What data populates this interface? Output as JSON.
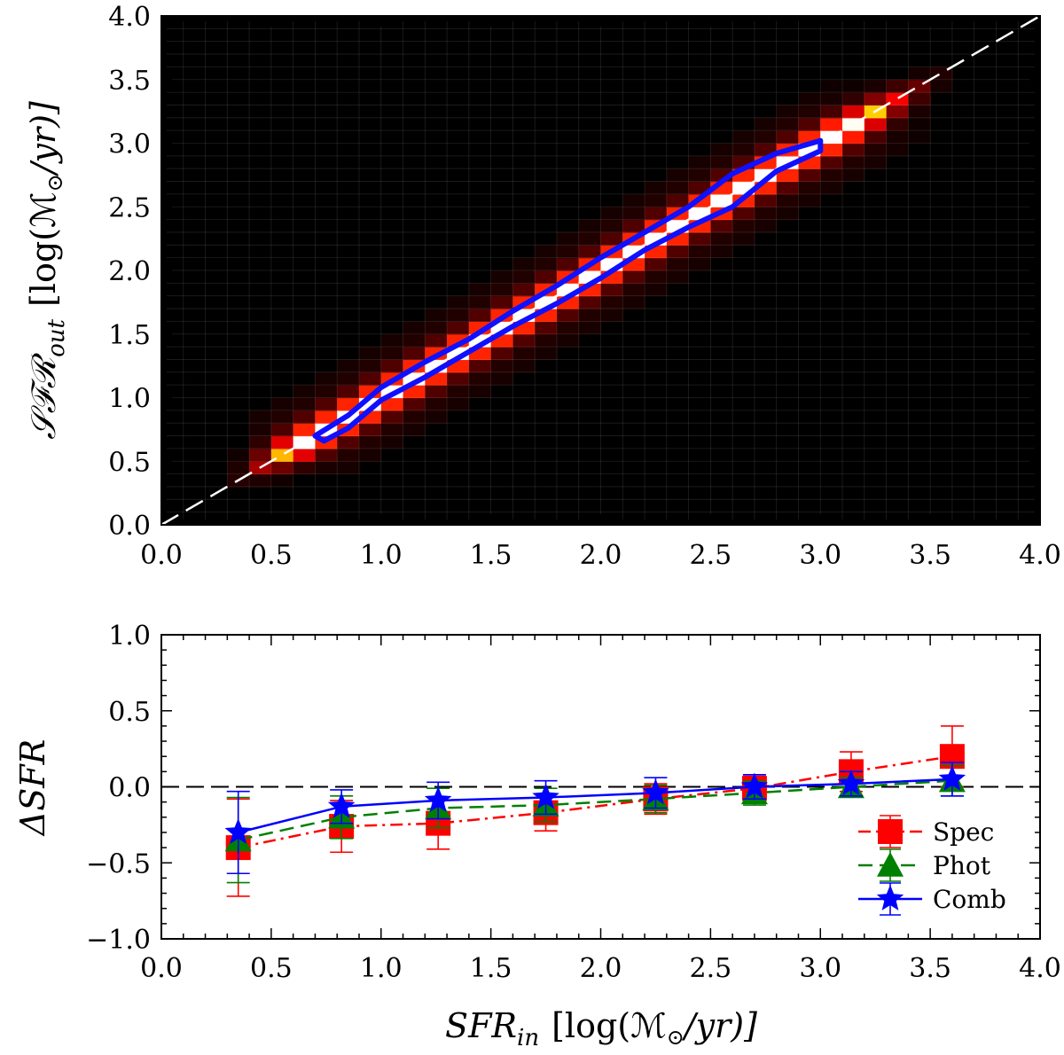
{
  "chart_data": [
    {
      "type": "heatmap",
      "title": "",
      "xlabel": "",
      "ylabel": "SFR_out [log(M_⊙/yr)]",
      "ylabel_parts": {
        "main": "𝒮ℱℛ",
        "sub": "out",
        "unit": "[log(ℳ",
        "sun": "⊙",
        "unit_end": "/yr)]"
      },
      "xlim": [
        0.0,
        4.0
      ],
      "ylim": [
        0.0,
        4.0
      ],
      "xticks": [
        "0.0",
        "0.5",
        "1.0",
        "1.5",
        "2.0",
        "2.5",
        "3.0",
        "3.5",
        "4.0"
      ],
      "yticks": [
        "0.0",
        "0.5",
        "1.0",
        "1.5",
        "2.0",
        "2.5",
        "3.0",
        "3.5",
        "4.0"
      ],
      "colormap": "hot",
      "bins": 40,
      "density_along_identity": {
        "x_start": 0.7,
        "x_end": 3.05,
        "core_peak": 1.0,
        "halo_extent": [
          0.3,
          3.6
        ]
      },
      "reference_line": {
        "style": "dashed",
        "color": "#ffffff",
        "from": [
          0.0,
          0.0
        ],
        "to": [
          4.0,
          4.0
        ]
      },
      "contour": {
        "color": "#1010ff",
        "upper_edge": [
          [
            0.7,
            0.7
          ],
          [
            0.85,
            0.86
          ],
          [
            1.0,
            1.08
          ],
          [
            1.2,
            1.28
          ],
          [
            1.4,
            1.46
          ],
          [
            1.6,
            1.68
          ],
          [
            1.8,
            1.88
          ],
          [
            2.0,
            2.1
          ],
          [
            2.2,
            2.3
          ],
          [
            2.4,
            2.5
          ],
          [
            2.6,
            2.76
          ],
          [
            2.8,
            2.92
          ],
          [
            3.0,
            3.02
          ]
        ],
        "lower_edge": [
          [
            3.0,
            2.94
          ],
          [
            2.8,
            2.78
          ],
          [
            2.6,
            2.5
          ],
          [
            2.4,
            2.34
          ],
          [
            2.2,
            2.16
          ],
          [
            2.0,
            1.94
          ],
          [
            1.8,
            1.74
          ],
          [
            1.6,
            1.56
          ],
          [
            1.4,
            1.36
          ],
          [
            1.2,
            1.16
          ],
          [
            1.0,
            0.98
          ],
          [
            0.85,
            0.76
          ],
          [
            0.74,
            0.66
          ]
        ]
      }
    },
    {
      "type": "line",
      "title": "",
      "xlabel": "SFR_in [log(M_⊙/yr)]",
      "xlabel_parts": {
        "main": "SFR",
        "sub": "in",
        "unit": "[log(ℳ",
        "sun": "⊙",
        "unit_end": "/yr)]"
      },
      "ylabel": "ΔSFR",
      "xlim": [
        0.0,
        4.0
      ],
      "ylim": [
        -1.0,
        1.0
      ],
      "xticks": [
        "0.0",
        "0.5",
        "1.0",
        "1.5",
        "2.0",
        "2.5",
        "3.0",
        "3.5",
        "4.0"
      ],
      "yticks": [
        "1.0",
        "0.5",
        "0.0",
        "−0.5",
        "−1.0"
      ],
      "reference_line": {
        "y": 0.0,
        "style": "dashed",
        "color": "#000000"
      },
      "legend": "lower-right",
      "series": [
        {
          "name": "Spec",
          "color": "#ff0000",
          "linestyle": "dashdot",
          "marker": "square",
          "x": [
            0.35,
            0.82,
            1.26,
            1.75,
            2.25,
            2.7,
            3.14,
            3.6
          ],
          "y": [
            -0.4,
            -0.26,
            -0.24,
            -0.17,
            -0.08,
            -0.01,
            0.1,
            0.2
          ],
          "err": [
            0.32,
            0.17,
            0.17,
            0.12,
            0.1,
            0.08,
            0.13,
            0.2
          ]
        },
        {
          "name": "Phot",
          "color": "#008000",
          "linestyle": "dashed",
          "marker": "triangle",
          "x": [
            0.35,
            0.82,
            1.26,
            1.75,
            2.25,
            2.7,
            3.14,
            3.6
          ],
          "y": [
            -0.35,
            -0.2,
            -0.14,
            -0.12,
            -0.08,
            -0.04,
            0.0,
            0.04
          ],
          "err": [
            0.28,
            0.14,
            0.13,
            0.11,
            0.09,
            0.08,
            0.06,
            0.1
          ]
        },
        {
          "name": "Comb",
          "color": "#0000ff",
          "linestyle": "solid",
          "marker": "star",
          "x": [
            0.35,
            0.82,
            1.26,
            1.75,
            2.25,
            2.7,
            3.14,
            3.6
          ],
          "y": [
            -0.3,
            -0.13,
            -0.09,
            -0.07,
            -0.04,
            0.0,
            0.02,
            0.05
          ],
          "err": [
            0.27,
            0.11,
            0.12,
            0.11,
            0.1,
            0.08,
            0.08,
            0.11
          ]
        }
      ]
    }
  ]
}
